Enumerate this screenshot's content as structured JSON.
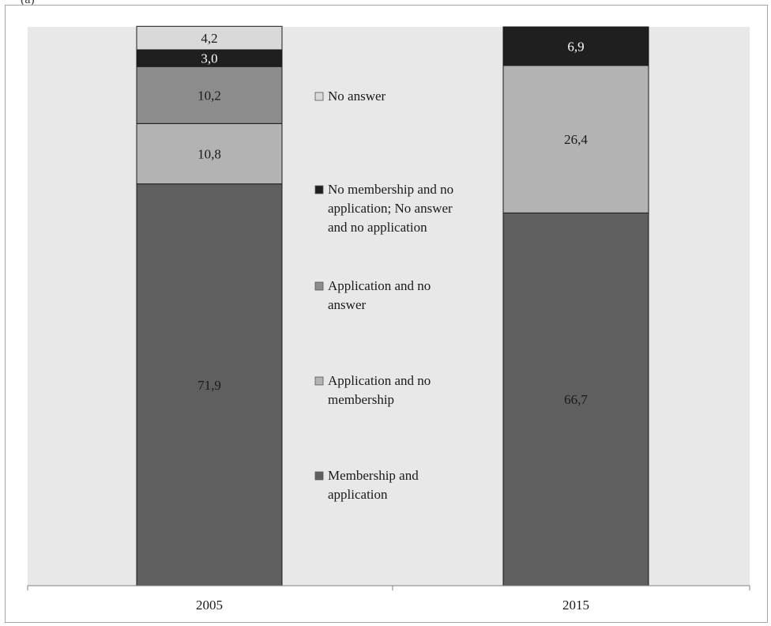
{
  "header": {
    "label": "(a)"
  },
  "chart_data": {
    "type": "bar",
    "stacked": true,
    "orientation": "vertical",
    "categories": [
      "2005",
      "2015"
    ],
    "series": [
      {
        "name": "Membership and application",
        "values": [
          71.9,
          66.7
        ],
        "labels": [
          "71,9",
          "66,7"
        ],
        "color": "#5f5f5f"
      },
      {
        "name": "Application and no membership",
        "values": [
          10.8,
          26.4
        ],
        "labels": [
          "10,8",
          "26,4"
        ],
        "color": "#b3b3b3"
      },
      {
        "name": "Application and no answer",
        "values": [
          10.2,
          0
        ],
        "labels": [
          "10,2",
          ""
        ],
        "color": "#8c8c8c"
      },
      {
        "name": "No membership and no application; No answer and no application",
        "values": [
          3.0,
          6.9
        ],
        "labels": [
          "3,0",
          "6,9"
        ],
        "color": "#1f1f1f"
      },
      {
        "name": "No answer",
        "values": [
          4.2,
          0
        ],
        "labels": [
          "4,2",
          ""
        ],
        "color": "#d9d9d9"
      }
    ],
    "ylim": [
      0,
      100
    ],
    "grid": false,
    "legend": {
      "position": "center",
      "entries": [
        {
          "lines": [
            "No answer"
          ],
          "color": "#d9d9d9"
        },
        {
          "lines": [
            "No membership and no",
            "application; No answer",
            "and no application"
          ],
          "color": "#1f1f1f"
        },
        {
          "lines": [
            "Application and no",
            "answer"
          ],
          "color": "#8c8c8c"
        },
        {
          "lines": [
            "Application and no",
            "membership"
          ],
          "color": "#b3b3b3"
        },
        {
          "lines": [
            "Membership and",
            "application"
          ],
          "color": "#5f5f5f"
        }
      ]
    },
    "colors": {
      "plot_background": "#e8e8e8",
      "bar_outline": "#1a1a1a",
      "axis": "#7f7f7f",
      "text": "#1a1a1a"
    }
  }
}
